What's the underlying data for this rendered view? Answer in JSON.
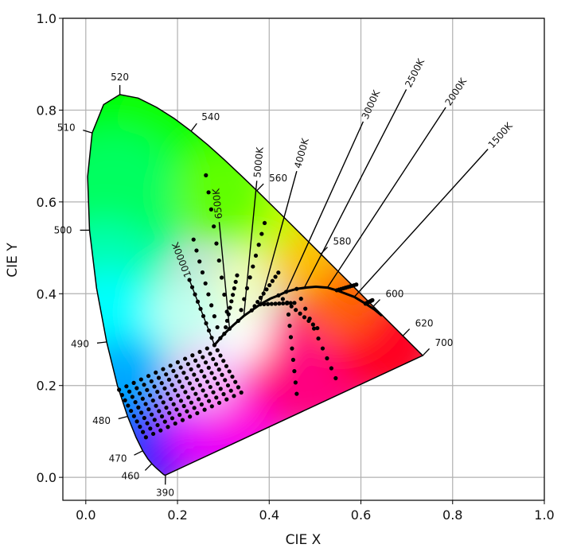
{
  "chart_data": {
    "type": "scatter",
    "title": "",
    "xlabel": "CIE X",
    "ylabel": "CIE Y",
    "xlim": [
      -0.05,
      1.0
    ],
    "ylim": [
      -0.05,
      1.0
    ],
    "grid": true,
    "xticks": [
      "0.0",
      "0.2",
      "0.4",
      "0.6",
      "0.8",
      "1.0"
    ],
    "yticks": [
      "0.0",
      "0.2",
      "0.4",
      "0.6",
      "0.8",
      "1.0"
    ],
    "spectral_locus": [
      [
        0.1741,
        0.005
      ],
      [
        0.174,
        0.005
      ],
      [
        0.1738,
        0.0049
      ],
      [
        0.1736,
        0.0049
      ],
      [
        0.1733,
        0.0048
      ],
      [
        0.173,
        0.0048
      ],
      [
        0.1726,
        0.0048
      ],
      [
        0.1721,
        0.0048
      ],
      [
        0.1714,
        0.0051
      ],
      [
        0.1703,
        0.0058
      ],
      [
        0.1689,
        0.0069
      ],
      [
        0.1669,
        0.0086
      ],
      [
        0.1644,
        0.0109
      ],
      [
        0.1611,
        0.0138
      ],
      [
        0.1566,
        0.0177
      ],
      [
        0.151,
        0.0227
      ],
      [
        0.144,
        0.0297
      ],
      [
        0.1355,
        0.0399
      ],
      [
        0.1241,
        0.0578
      ],
      [
        0.1096,
        0.0868
      ],
      [
        0.0913,
        0.1327
      ],
      [
        0.0687,
        0.2007
      ],
      [
        0.0454,
        0.295
      ],
      [
        0.0235,
        0.4127
      ],
      [
        0.0082,
        0.5384
      ],
      [
        0.0039,
        0.6548
      ],
      [
        0.0139,
        0.7502
      ],
      [
        0.0389,
        0.812
      ],
      [
        0.0743,
        0.8338
      ],
      [
        0.1142,
        0.8262
      ],
      [
        0.1547,
        0.8059
      ],
      [
        0.1929,
        0.7816
      ],
      [
        0.2296,
        0.7543
      ],
      [
        0.2658,
        0.7243
      ],
      [
        0.3016,
        0.6923
      ],
      [
        0.3373,
        0.6589
      ],
      [
        0.3731,
        0.6245
      ],
      [
        0.4087,
        0.5896
      ],
      [
        0.4441,
        0.5547
      ],
      [
        0.4788,
        0.5202
      ],
      [
        0.5125,
        0.4866
      ],
      [
        0.5448,
        0.4544
      ],
      [
        0.5752,
        0.4242
      ],
      [
        0.6029,
        0.3965
      ],
      [
        0.627,
        0.3725
      ],
      [
        0.6482,
        0.3514
      ],
      [
        0.6658,
        0.334
      ],
      [
        0.6801,
        0.3197
      ],
      [
        0.6915,
        0.3083
      ],
      [
        0.7006,
        0.2993
      ],
      [
        0.7079,
        0.292
      ],
      [
        0.714,
        0.2859
      ],
      [
        0.719,
        0.2809
      ],
      [
        0.723,
        0.277
      ],
      [
        0.726,
        0.274
      ],
      [
        0.7283,
        0.2717
      ],
      [
        0.73,
        0.27
      ],
      [
        0.7311,
        0.2689
      ],
      [
        0.732,
        0.268
      ],
      [
        0.7327,
        0.2673
      ],
      [
        0.7334,
        0.2666
      ],
      [
        0.734,
        0.266
      ],
      [
        0.7344,
        0.2656
      ],
      [
        0.7346,
        0.2654
      ],
      [
        0.7347,
        0.2653
      ]
    ],
    "wavelength_labels": [
      {
        "nm": "390",
        "x": 0.1738,
        "y": 0.0049,
        "nx": -0.02,
        "ny": -1.0
      },
      {
        "nm": "460",
        "x": 0.144,
        "y": 0.0297,
        "nx": -0.7,
        "ny": -0.7
      },
      {
        "nm": "470",
        "x": 0.1241,
        "y": 0.0578,
        "nx": -0.9,
        "ny": -0.45
      },
      {
        "nm": "480",
        "x": 0.0913,
        "y": 0.1327,
        "nx": -0.97,
        "ny": -0.25
      },
      {
        "nm": "490",
        "x": 0.0454,
        "y": 0.295,
        "nx": -1.0,
        "ny": -0.12
      },
      {
        "nm": "500",
        "x": 0.0082,
        "y": 0.5384,
        "nx": -1.0,
        "ny": 0.0
      },
      {
        "nm": "510",
        "x": 0.0139,
        "y": 0.7502,
        "nx": -0.96,
        "ny": 0.3
      },
      {
        "nm": "520",
        "x": 0.0743,
        "y": 0.8338,
        "nx": 0.0,
        "ny": 1.0
      },
      {
        "nm": "540",
        "x": 0.2296,
        "y": 0.7543,
        "nx": 0.6,
        "ny": 0.8
      },
      {
        "nm": "560",
        "x": 0.3731,
        "y": 0.6245,
        "nx": 0.7,
        "ny": 0.72
      },
      {
        "nm": "580",
        "x": 0.5125,
        "y": 0.4866,
        "nx": 0.7,
        "ny": 0.72
      },
      {
        "nm": "600",
        "x": 0.627,
        "y": 0.3725,
        "nx": 0.7,
        "ny": 0.72
      },
      {
        "nm": "620",
        "x": 0.6915,
        "y": 0.3083,
        "nx": 0.7,
        "ny": 0.72
      },
      {
        "nm": "700",
        "x": 0.7347,
        "y": 0.2653,
        "nx": 0.7,
        "ny": 0.72
      }
    ],
    "planckian_locus_xy": [
      [
        0.2806,
        0.2883
      ],
      [
        0.2934,
        0.3031
      ],
      [
        0.3021,
        0.3128
      ],
      [
        0.3135,
        0.3237
      ],
      [
        0.3221,
        0.3318
      ],
      [
        0.3325,
        0.3409
      ],
      [
        0.3447,
        0.3516
      ],
      [
        0.3618,
        0.3638
      ],
      [
        0.3805,
        0.3768
      ],
      [
        0.4034,
        0.3897
      ],
      [
        0.4203,
        0.3964
      ],
      [
        0.4369,
        0.4041
      ],
      [
        0.4599,
        0.4106
      ],
      [
        0.4812,
        0.4135
      ],
      [
        0.5018,
        0.4152
      ],
      [
        0.5269,
        0.4133
      ],
      [
        0.5474,
        0.4075
      ],
      [
        0.5857,
        0.3931
      ],
      [
        0.6101,
        0.3784
      ],
      [
        0.6295,
        0.3657
      ],
      [
        0.646,
        0.352
      ]
    ],
    "isotherms": [
      {
        "label": "1500K",
        "x1": 0.5857,
        "y1": 0.3931,
        "x2": 0.877,
        "y2": 0.715
      },
      {
        "label": "2000K",
        "x1": 0.5269,
        "y1": 0.4133,
        "x2": 0.785,
        "y2": 0.806
      },
      {
        "label": "2500K",
        "x1": 0.4769,
        "y1": 0.4138,
        "x2": 0.699,
        "y2": 0.845
      },
      {
        "label": "3000K",
        "x1": 0.4369,
        "y1": 0.4041,
        "x2": 0.605,
        "y2": 0.775
      },
      {
        "label": "4000K",
        "x1": 0.3805,
        "y1": 0.3768,
        "x2": 0.46,
        "y2": 0.667
      },
      {
        "label": "5000K",
        "x1": 0.3447,
        "y1": 0.3516,
        "x2": 0.373,
        "y2": 0.646
      },
      {
        "label": "6500K",
        "x1": 0.3135,
        "y1": 0.3237,
        "x2": 0.291,
        "y2": 0.556
      },
      {
        "label": "10000K",
        "x1": 0.2806,
        "y1": 0.2883,
        "x2": 0.226,
        "y2": 0.43
      }
    ],
    "isotherm_dot_families": [
      {
        "from": [
          0.226,
          0.43
        ],
        "to": [
          0.2806,
          0.2883
        ]
      },
      {
        "from": [
          0.235,
          0.518
        ],
        "to": [
          0.2934,
          0.3031
        ]
      },
      {
        "from": [
          0.262,
          0.658
        ],
        "to": [
          0.3135,
          0.3237
        ]
      },
      {
        "from": [
          0.33,
          0.44
        ],
        "to": [
          0.3021,
          0.3128
        ]
      },
      {
        "from": [
          0.39,
          0.554
        ],
        "to": [
          0.3325,
          0.3409
        ]
      },
      {
        "from": [
          0.42,
          0.446
        ],
        "to": [
          0.3618,
          0.3638
        ]
      },
      {
        "from": [
          0.455,
          0.38
        ],
        "to": [
          0.3805,
          0.3768
        ]
      },
      {
        "from": [
          0.505,
          0.325
        ],
        "to": [
          0.4203,
          0.3964
        ]
      },
      {
        "from": [
          0.545,
          0.216
        ],
        "to": [
          0.4599,
          0.4106
        ]
      },
      {
        "from": [
          0.46,
          0.182
        ],
        "to": [
          0.4369,
          0.4041
        ]
      },
      {
        "from": [
          0.625,
          0.386
        ],
        "to": [
          0.6101,
          0.3784
        ]
      },
      {
        "from": [
          0.59,
          0.42
        ],
        "to": [
          0.5474,
          0.4075
        ]
      }
    ],
    "grid_dots": {
      "origin": [
        0.2806,
        0.2883
      ],
      "axis_a": [
        -0.016,
        -0.0075
      ],
      "axis_b": [
        0.0065,
        -0.0115
      ],
      "rows": 14,
      "cols": 10
    }
  }
}
